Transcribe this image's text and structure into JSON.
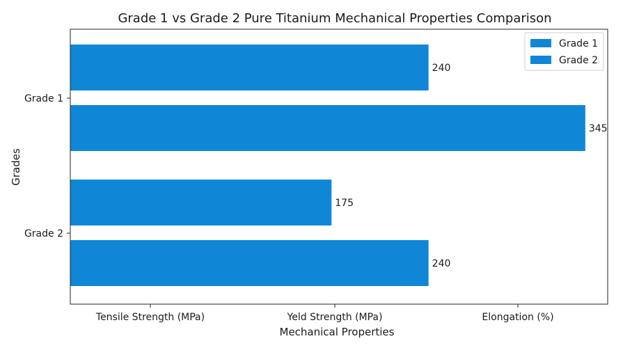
{
  "chart_data": {
    "type": "bar",
    "orientation": "horizontal",
    "title": "Grade 1 vs Grade 2 Pure Titanium Mechanical Properties Comparison",
    "xlabel": "Mechanical Properties",
    "ylabel": "Grades",
    "categories": [
      "Grade 1",
      "Grade 2"
    ],
    "x_tick_labels": [
      "Tensile Strength (MPa)",
      "Yeld Strength (MPa)",
      "Elongation (%)"
    ],
    "xlim": [
      0,
      360
    ],
    "series": [
      {
        "name": "Grade 1",
        "values": [
          240,
          175
        ]
      },
      {
        "name": "Grade 2",
        "values": [
          345,
          240
        ]
      }
    ],
    "bar_color": "#0f87d6",
    "grid": false,
    "legend_position": "top-right"
  }
}
